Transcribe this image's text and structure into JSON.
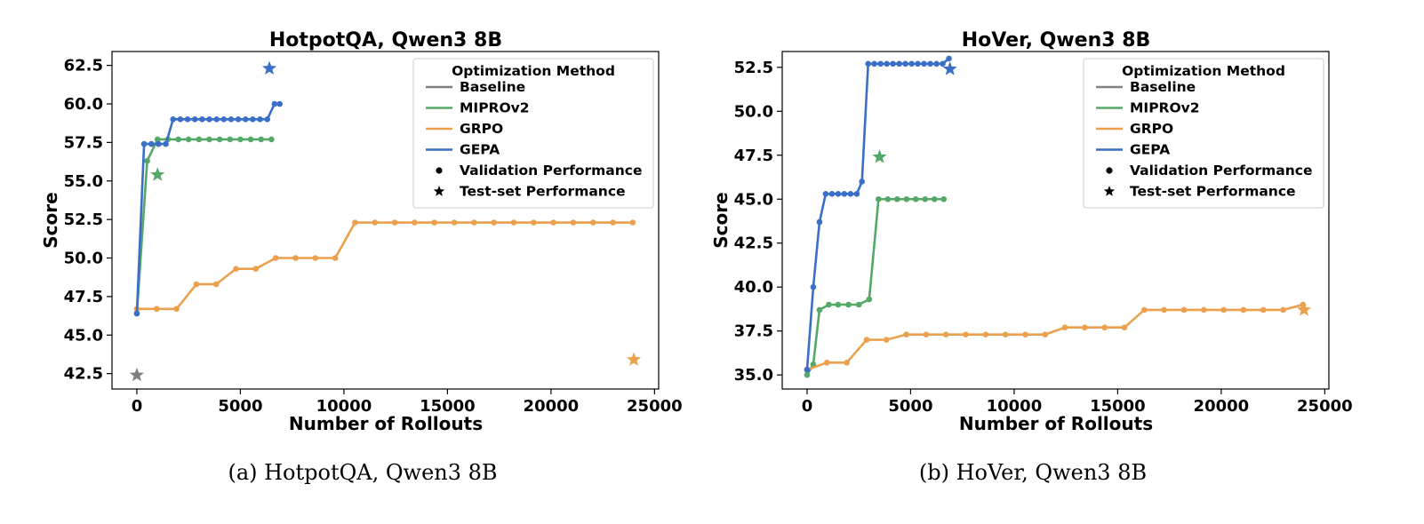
{
  "chart_data": [
    {
      "type": "line",
      "title": "HotpotQA, Qwen3 8B",
      "caption": "(a) HotpotQA, Qwen3 8B",
      "xlabel": "Number of Rollouts",
      "ylabel": "Score",
      "xlim": [
        -1200,
        25200
      ],
      "ylim": [
        41.5,
        63.4
      ],
      "xticks": [
        0,
        5000,
        10000,
        15000,
        20000,
        25000
      ],
      "yticks": [
        42.5,
        45.0,
        47.5,
        50.0,
        52.5,
        55.0,
        57.5,
        60.0,
        62.5
      ],
      "grid": false,
      "legend": {
        "title": "Optimization Method",
        "placement": "top-right",
        "entries": [
          {
            "label": "Baseline",
            "kind": "line",
            "color": "#808080"
          },
          {
            "label": "MIPROv2",
            "kind": "line",
            "color": "#55a868"
          },
          {
            "label": "GRPO",
            "kind": "line",
            "color": "#eba04e"
          },
          {
            "label": "GEPA",
            "kind": "line",
            "color": "#3a6fc7"
          },
          {
            "label": "Validation Performance",
            "kind": "dot",
            "color": "#000000"
          },
          {
            "label": "Test-set Performance",
            "kind": "star",
            "color": "#000000"
          }
        ]
      },
      "series": [
        {
          "name": "MIPROv2",
          "color": "#55a868",
          "x": [
            0,
            500,
            1000,
            1500,
            2000,
            2500,
            3000,
            3500,
            4000,
            4500,
            5000,
            5500,
            6000,
            6500
          ],
          "y": [
            46.4,
            56.3,
            57.7,
            57.7,
            57.7,
            57.7,
            57.7,
            57.7,
            57.7,
            57.7,
            57.7,
            57.7,
            57.7,
            57.7
          ]
        },
        {
          "name": "GRPO",
          "color": "#eba04e",
          "x": [
            0,
            958,
            1916,
            2874,
            3832,
            4790,
            5748,
            6706,
            7664,
            8622,
            9580,
            10538,
            11496,
            12454,
            13412,
            14370,
            15328,
            16286,
            17244,
            18202,
            19160,
            20118,
            21076,
            22034,
            22992,
            23950
          ],
          "y": [
            46.7,
            46.7,
            46.7,
            48.3,
            48.3,
            49.3,
            49.3,
            50.0,
            50.0,
            50.0,
            50.0,
            52.3,
            52.3,
            52.3,
            52.3,
            52.3,
            52.3,
            52.3,
            52.3,
            52.3,
            52.3,
            52.3,
            52.3,
            52.3,
            52.3,
            52.3
          ]
        },
        {
          "name": "GEPA",
          "color": "#3a6fc7",
          "x": [
            0,
            350,
            700,
            1050,
            1400,
            1750,
            2100,
            2450,
            2800,
            3150,
            3500,
            3850,
            4200,
            4550,
            4900,
            5250,
            5600,
            5950,
            6300,
            6650,
            6900
          ],
          "y": [
            46.4,
            57.4,
            57.4,
            57.4,
            57.4,
            59.0,
            59.0,
            59.0,
            59.0,
            59.0,
            59.0,
            59.0,
            59.0,
            59.0,
            59.0,
            59.0,
            59.0,
            59.0,
            59.0,
            60.0,
            60.0
          ]
        }
      ],
      "test_points": [
        {
          "name": "Baseline",
          "color": "#808080",
          "x": 0,
          "y": 42.4
        },
        {
          "name": "MIPROv2",
          "color": "#55a868",
          "x": 1000,
          "y": 55.4
        },
        {
          "name": "GEPA",
          "color": "#3a6fc7",
          "x": 6400,
          "y": 62.3
        },
        {
          "name": "GRPO",
          "color": "#eba04e",
          "x": 24000,
          "y": 43.4
        }
      ]
    },
    {
      "type": "line",
      "title": "HoVer, Qwen3 8B",
      "caption": "(b) HoVer, Qwen3 8B",
      "xlabel": "Number of Rollouts",
      "ylabel": "Score",
      "xlim": [
        -1200,
        25200
      ],
      "ylim": [
        34.2,
        53.4
      ],
      "xticks": [
        0,
        5000,
        10000,
        15000,
        20000,
        25000
      ],
      "yticks": [
        35.0,
        37.5,
        40.0,
        42.5,
        45.0,
        47.5,
        50.0,
        52.5
      ],
      "grid": false,
      "legend": {
        "title": "Optimization Method",
        "placement": "top-right",
        "entries": [
          {
            "label": "Baseline",
            "kind": "line",
            "color": "#808080"
          },
          {
            "label": "MIPROv2",
            "kind": "line",
            "color": "#55a868"
          },
          {
            "label": "GRPO",
            "kind": "line",
            "color": "#eba04e"
          },
          {
            "label": "GEPA",
            "kind": "line",
            "color": "#3a6fc7"
          },
          {
            "label": "Validation Performance",
            "kind": "dot",
            "color": "#000000"
          },
          {
            "label": "Test-set Performance",
            "kind": "star",
            "color": "#000000"
          }
        ]
      },
      "series": [
        {
          "name": "MIPROv2",
          "color": "#55a868",
          "x": [
            0,
            300,
            600,
            1050,
            1500,
            2000,
            2500,
            3000,
            3450,
            3900,
            4350,
            4800,
            5250,
            5700,
            6150,
            6600
          ],
          "y": [
            35.0,
            35.6,
            38.7,
            39.0,
            39.0,
            39.0,
            39.0,
            39.3,
            45.0,
            45.0,
            45.0,
            45.0,
            45.0,
            45.0,
            45.0,
            45.0
          ]
        },
        {
          "name": "GRPO",
          "color": "#eba04e",
          "x": [
            0,
            958,
            1916,
            2874,
            3832,
            4790,
            5748,
            6706,
            7664,
            8622,
            9580,
            10538,
            11496,
            12454,
            13412,
            14370,
            15328,
            16286,
            17244,
            18202,
            19160,
            20118,
            21076,
            22034,
            22992,
            23950
          ],
          "y": [
            35.3,
            35.7,
            35.7,
            37.0,
            37.0,
            37.3,
            37.3,
            37.3,
            37.3,
            37.3,
            37.3,
            37.3,
            37.3,
            37.7,
            37.7,
            37.7,
            37.7,
            38.7,
            38.7,
            38.7,
            38.7,
            38.7,
            38.7,
            38.7,
            38.7,
            39.0
          ]
        },
        {
          "name": "GEPA",
          "color": "#3a6fc7",
          "x": [
            0,
            300,
            600,
            900,
            1200,
            1500,
            1800,
            2100,
            2400,
            2650,
            2950,
            3250,
            3550,
            3850,
            4150,
            4450,
            4750,
            5050,
            5350,
            5650,
            5950,
            6250,
            6550,
            6850
          ],
          "y": [
            35.3,
            40.0,
            43.7,
            45.3,
            45.3,
            45.3,
            45.3,
            45.3,
            45.3,
            46.0,
            52.7,
            52.7,
            52.7,
            52.7,
            52.7,
            52.7,
            52.7,
            52.7,
            52.7,
            52.7,
            52.7,
            52.7,
            52.7,
            53.0
          ]
        }
      ],
      "test_points": [
        {
          "name": "MIPROv2",
          "color": "#55a868",
          "x": 3500,
          "y": 47.4
        },
        {
          "name": "GEPA",
          "color": "#3a6fc7",
          "x": 6900,
          "y": 52.4
        },
        {
          "name": "GRPO",
          "color": "#eba04e",
          "x": 24000,
          "y": 38.7
        }
      ]
    }
  ]
}
